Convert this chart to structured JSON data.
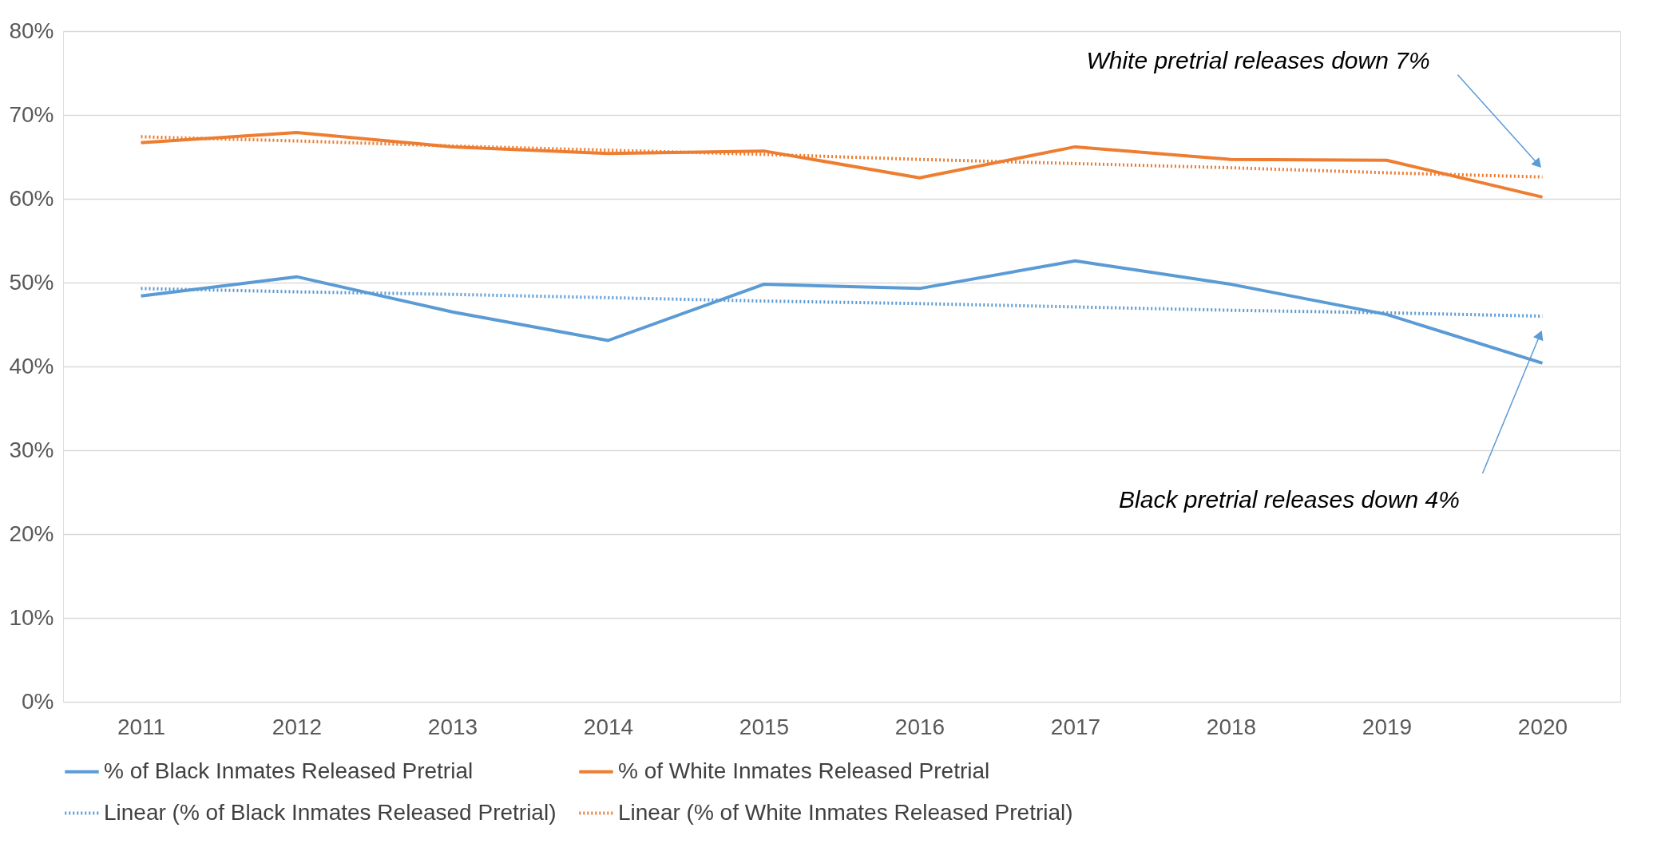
{
  "chart_data": {
    "type": "line",
    "categories": [
      "2011",
      "2012",
      "2013",
      "2014",
      "2015",
      "2016",
      "2017",
      "2018",
      "2019",
      "2020"
    ],
    "series": [
      {
        "name": "% of Black Inmates Released Pretrial",
        "color": "#5b9bd5",
        "line_style": "solid",
        "values": [
          48.4,
          50.7,
          46.5,
          43.1,
          49.8,
          49.3,
          52.6,
          49.8,
          46.2,
          40.4
        ]
      },
      {
        "name": "% of White Inmates Released Pretrial",
        "color": "#ed7d31",
        "line_style": "solid",
        "values": [
          66.7,
          67.9,
          66.2,
          65.4,
          65.7,
          62.5,
          66.2,
          64.7,
          64.6,
          60.2
        ]
      },
      {
        "name": "Linear (% of Black Inmates Released Pretrial)",
        "type": "line",
        "color": "#5b9bd5",
        "line_style": "dotted",
        "values": [
          49.3,
          48.9,
          48.6,
          48.2,
          47.8,
          47.5,
          47.1,
          46.7,
          46.4,
          46.0
        ]
      },
      {
        "name": "Linear (% of White Inmates Released Pretrial)",
        "type": "line",
        "color": "#ed7d31",
        "line_style": "dotted",
        "values": [
          67.4,
          66.9,
          66.3,
          65.8,
          65.3,
          64.7,
          64.2,
          63.7,
          63.1,
          62.6
        ]
      }
    ],
    "ylim": [
      0,
      80
    ],
    "yticks": [
      {
        "value": 0,
        "label": "0%"
      },
      {
        "value": 10,
        "label": "10%"
      },
      {
        "value": 20,
        "label": "20%"
      },
      {
        "value": 30,
        "label": "30%"
      },
      {
        "value": 40,
        "label": "40%"
      },
      {
        "value": 50,
        "label": "50%"
      },
      {
        "value": 60,
        "label": "60%"
      },
      {
        "value": 70,
        "label": "70%"
      },
      {
        "value": 80,
        "label": "80%"
      }
    ],
    "grid": "y",
    "legend": "bottom",
    "marker": "none",
    "annotations": [
      "White pretrial releases down 7%",
      "Black pretrial releases down 4%"
    ]
  }
}
